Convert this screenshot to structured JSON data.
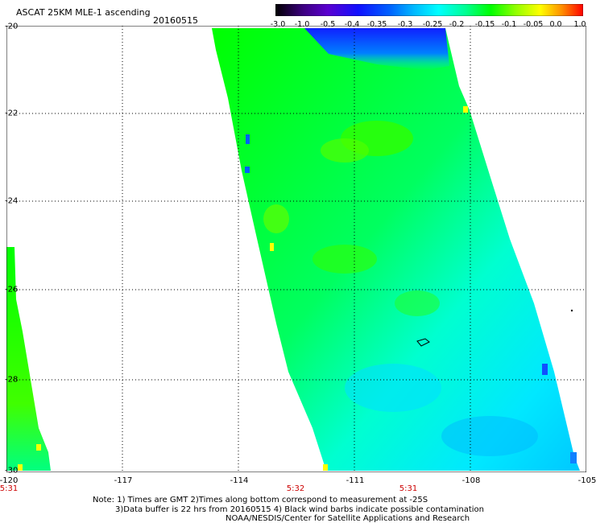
{
  "header": {
    "title": "ASCAT 25KM MLE-1 ascending",
    "date": "20160515"
  },
  "colorbar": {
    "labels": [
      "-3.0",
      "-1.0",
      "-0.5",
      "-0.4",
      "-0.35",
      "-0.3",
      "-0.25",
      "-0.2",
      "-0.15",
      "-0.1",
      "-0.05",
      "0.0",
      "1.0"
    ],
    "colors": [
      "#000000",
      "#3c0080",
      "#5a00d0",
      "#1010ff",
      "#0060ff",
      "#00b8ff",
      "#00ffff",
      "#00ff90",
      "#00ff00",
      "#90ff00",
      "#ffff00",
      "#ff9000",
      "#ff0000"
    ]
  },
  "map": {
    "lat_labels": [
      "-20",
      "-22",
      "-24",
      "-26",
      "-28",
      "-30"
    ],
    "lon_labels": [
      "-120",
      "-117",
      "-114",
      "-111",
      "-108",
      "-105"
    ],
    "time_labels": [
      "5:31",
      "5:32",
      "5:31"
    ]
  },
  "footer": {
    "note1": "Note: 1) Times are GMT 2)Times along bottom correspond to measurement at -25S",
    "note2": "3)Data buffer is 22 hrs from 20160515 4) Black wind barbs indicate possible contamination",
    "note3": "NOAA/NESDIS/Center for Satellite Applications and Research"
  }
}
